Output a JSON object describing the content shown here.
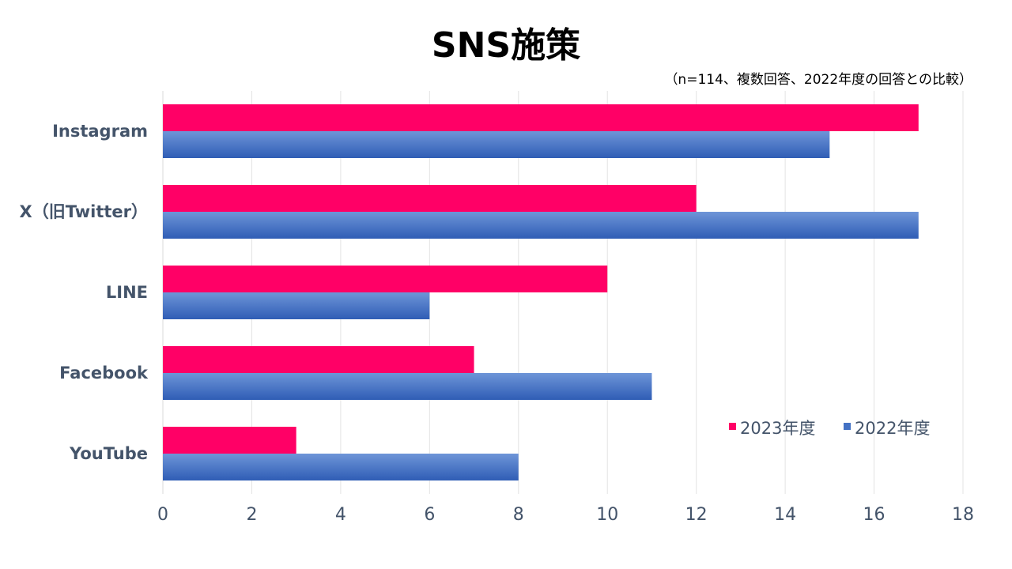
{
  "chart_data": {
    "type": "bar",
    "orientation": "horizontal",
    "title": "SNS施策",
    "subtitle": "（n=114、複数回答、2022年度の回答との比較）",
    "categories": [
      "Instagram",
      "X（旧Twitter）",
      "LINE",
      "Facebook",
      "YouTube"
    ],
    "series": [
      {
        "name": "2023年度",
        "color": "#ff0066",
        "values": [
          17,
          12,
          10,
          7,
          3
        ]
      },
      {
        "name": "2022年度",
        "color": "#4472c4",
        "values": [
          15,
          17,
          6,
          11,
          8
        ]
      }
    ],
    "xlim": [
      0,
      18
    ],
    "xticks": [
      0,
      2,
      4,
      6,
      8,
      10,
      12,
      14,
      16,
      18
    ],
    "grid": true,
    "legend_position": "bottom-right"
  }
}
